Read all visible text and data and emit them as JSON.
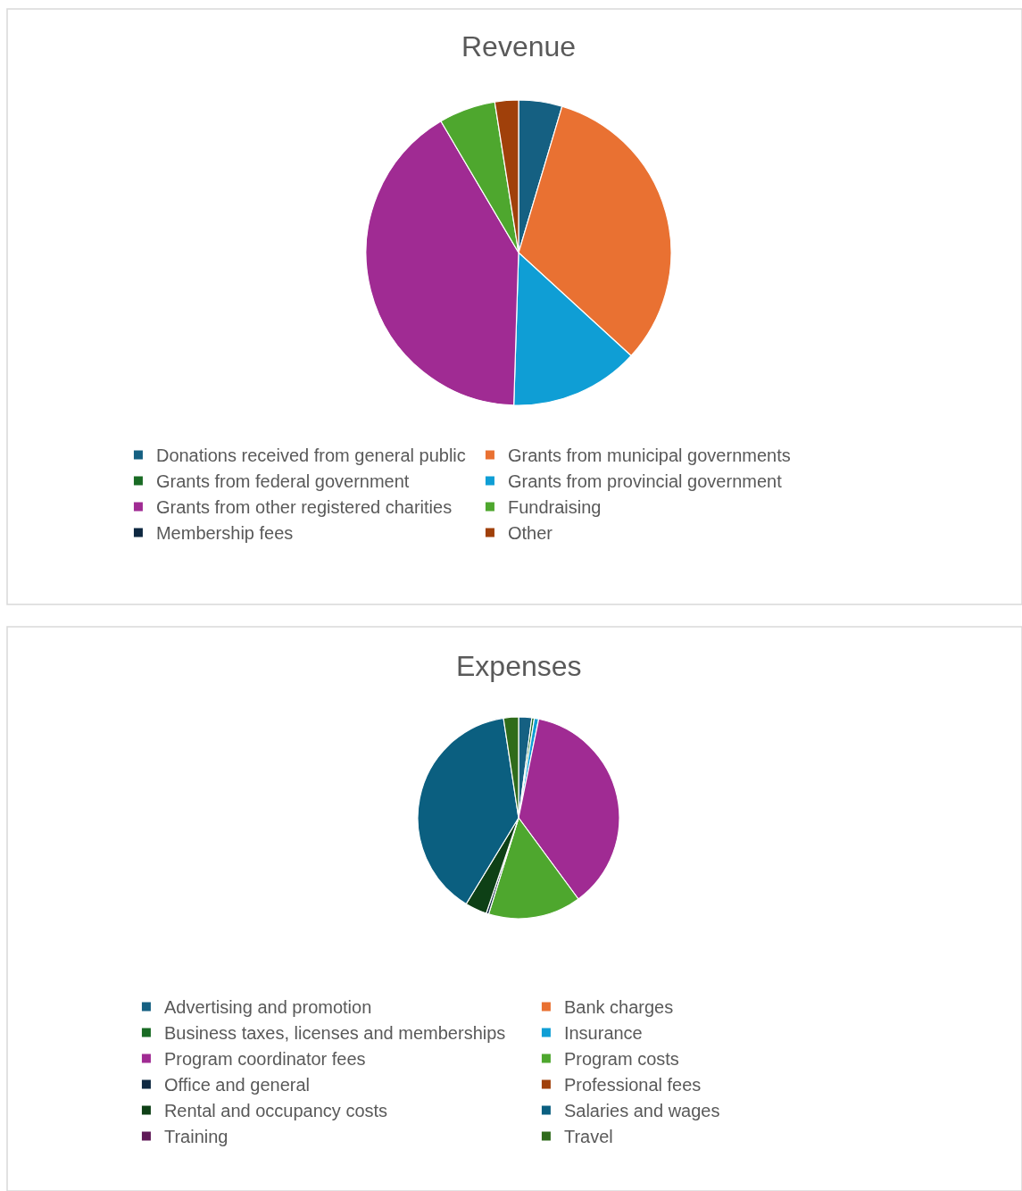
{
  "chart_data": [
    {
      "type": "pie",
      "title": "Revenue",
      "categories": [
        "Donations received from general public",
        "Grants from municipal governments",
        "Grants from federal government",
        "Grants from provincial government",
        "Grants from other registered charities",
        "Fundraising",
        "Membership fees",
        "Other"
      ],
      "values": [
        4.6,
        32.2,
        0,
        13.7,
        41,
        6,
        0,
        2.5
      ],
      "colors": [
        "#156082",
        "#e97132",
        "#196b24",
        "#0f9ed5",
        "#a02b93",
        "#4ea72e",
        "#0e2841",
        "#a0400a"
      ],
      "legend": "bottom"
    },
    {
      "type": "pie",
      "title": "Expenses",
      "categories": [
        "Advertising and promotion",
        "Bank charges",
        "Business taxes, licenses and memberships",
        "Insurance",
        "Program coordinator fees",
        "Program costs",
        "Office and general",
        "Professional fees",
        "Rental and occupancy costs",
        "Salaries and wages",
        "Training",
        "Travel"
      ],
      "values": [
        2.1,
        0,
        0.4,
        0.7,
        36.7,
        14.9,
        0.4,
        0,
        3.5,
        38.9,
        0,
        2.4
      ],
      "colors": [
        "#156082",
        "#e97132",
        "#196b24",
        "#0f9ed5",
        "#a02b93",
        "#4ea72e",
        "#0e2841",
        "#a0400a",
        "#0e4016",
        "#0b5f80",
        "#5f1957",
        "#2f6b1b"
      ],
      "legend": "bottom"
    }
  ]
}
